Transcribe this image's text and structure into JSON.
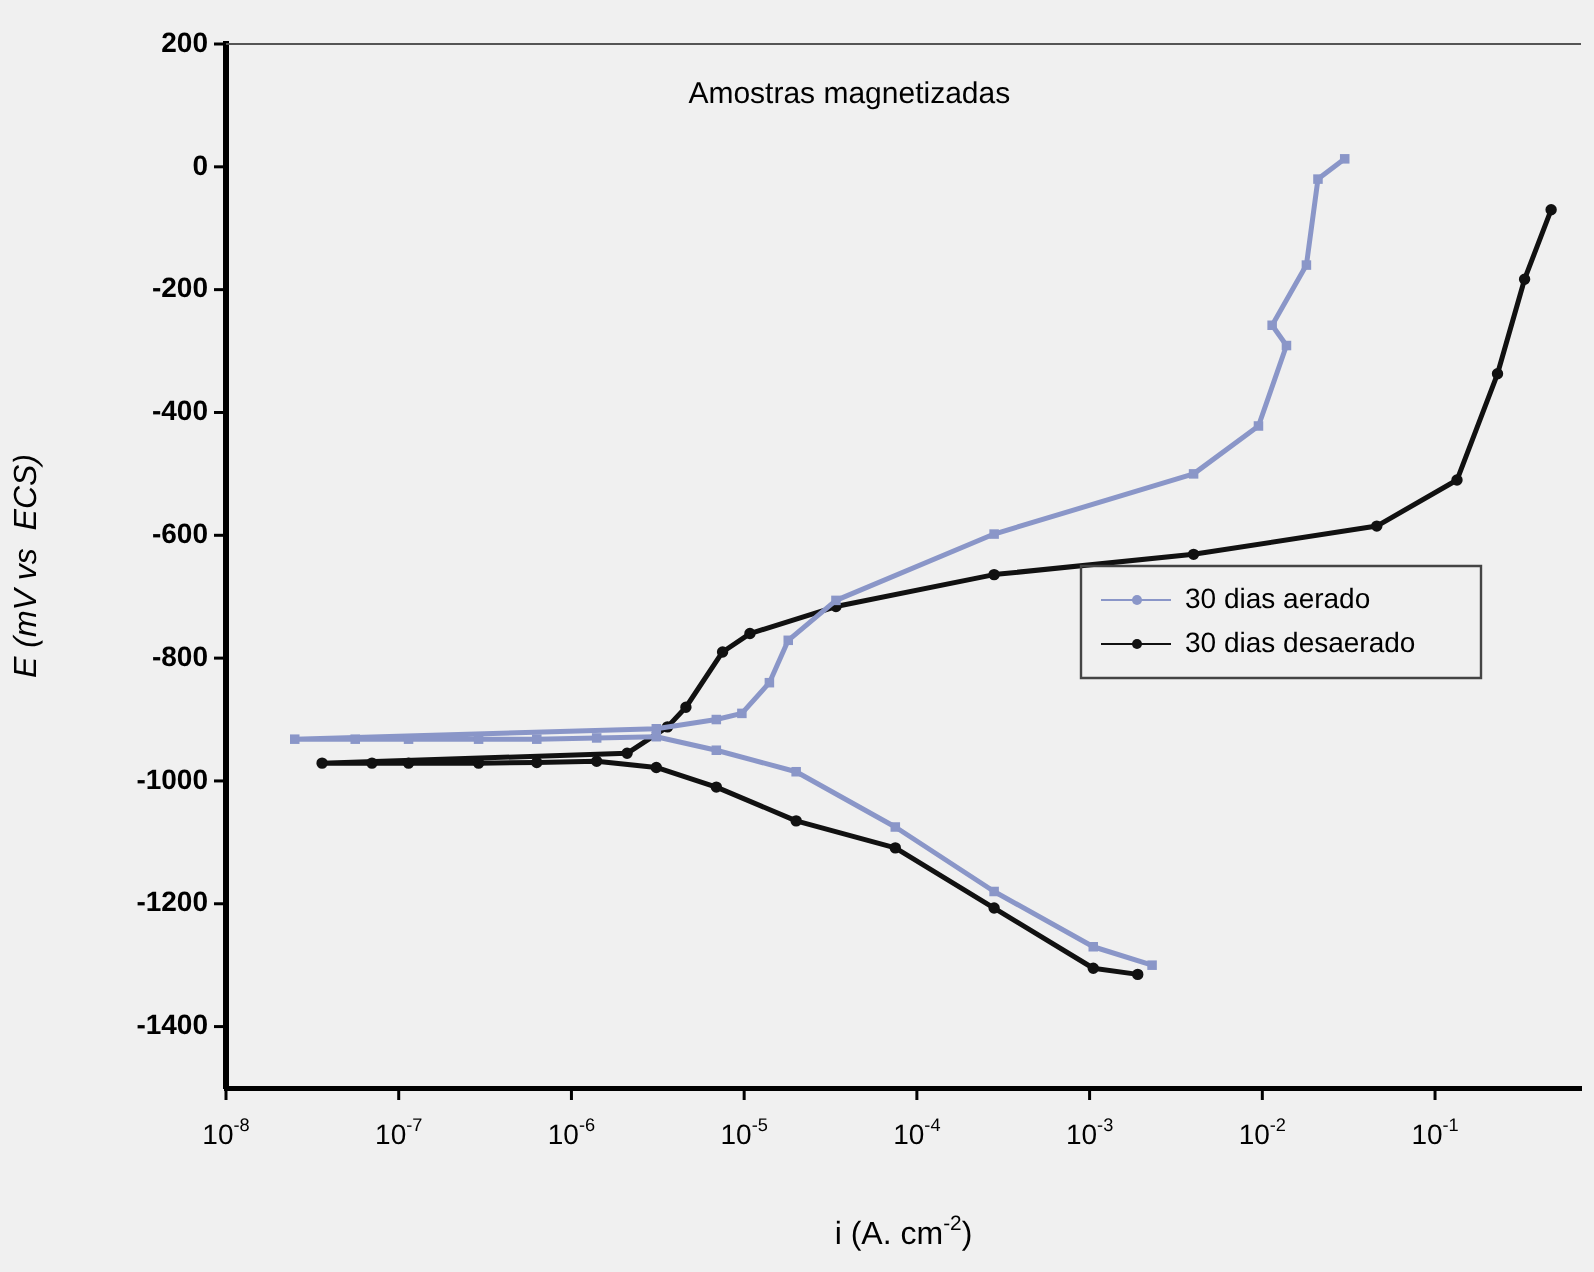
{
  "chart_data": {
    "type": "line",
    "title": "Amostras magnetizadas",
    "xlabel": "i (A. cm$^{-2}$)",
    "ylabel": "E (mV vs  ECS)",
    "log": "x",
    "legend": "right",
    "grid": false,
    "xlim": [
      1e-08,
      0.7
    ],
    "xticks": [
      {
        "value": 1e-08,
        "label": "10$^{-8}$"
      },
      {
        "value": 1e-07,
        "label": "10$^{-7}$"
      },
      {
        "value": 1e-06,
        "label": "10$^{-6}$"
      },
      {
        "value": 1e-05,
        "label": "10$^{-5}$"
      },
      {
        "value": 0.0001,
        "label": "10$^{-4}$"
      },
      {
        "value": 0.001,
        "label": "10$^{-3}$"
      },
      {
        "value": 0.01,
        "label": "10$^{-2}$"
      },
      {
        "value": 0.1,
        "label": "10$^{-1}$"
      }
    ],
    "ylim": [
      -1500,
      200
    ],
    "yticks": [
      -1400,
      -1200,
      -1000,
      -800,
      -600,
      -400,
      -200,
      0,
      200
    ],
    "series": [
      {
        "name": "30 dias aerado",
        "color": "#8a96c8",
        "marker": "square",
        "x": [
          0.0023,
          0.00105,
          0.00028,
          7.5e-05,
          2e-05,
          6.9e-06,
          3.1e-06,
          1.4e-06,
          6.3e-07,
          2.9e-07,
          1.14e-07,
          5.6e-08,
          2.5e-08,
          3.1e-06,
          6.9e-06,
          9.7e-06,
          1.4e-05,
          1.8e-05,
          3.4e-05,
          0.00028,
          0.004,
          0.0095,
          0.0138,
          0.0114,
          0.018,
          0.021,
          0.03
        ],
        "values": [
          -1300,
          -1270,
          -1180,
          -1075,
          -985,
          -950,
          -928,
          -930,
          -932,
          -932,
          -932,
          -932,
          -932,
          -915,
          -900,
          -890,
          -840,
          -771,
          -706,
          -598,
          -500,
          -422,
          -291,
          -258,
          -160,
          -20,
          13
        ]
      },
      {
        "name": "30 dias desaerado",
        "color": "#111111",
        "marker": "circle",
        "x": [
          0.0019,
          0.00105,
          0.00028,
          7.5e-05,
          2e-05,
          6.9e-06,
          3.1e-06,
          1.4e-06,
          6.3e-07,
          2.9e-07,
          1.14e-07,
          7e-08,
          3.6e-08,
          2.1e-06,
          3.6e-06,
          4.6e-06,
          7.5e-06,
          1.08e-05,
          3.4e-05,
          0.00028,
          0.004,
          0.046,
          0.134,
          0.23,
          0.33,
          0.47
        ],
        "values": [
          -1315,
          -1305,
          -1207,
          -1109,
          -1065,
          -1010,
          -978,
          -968,
          -970,
          -971,
          -971,
          -971,
          -971,
          -955,
          -912,
          -880,
          -790,
          -760,
          -716,
          -664,
          -631,
          -585,
          -510,
          -337,
          -183,
          -70
        ]
      }
    ]
  }
}
